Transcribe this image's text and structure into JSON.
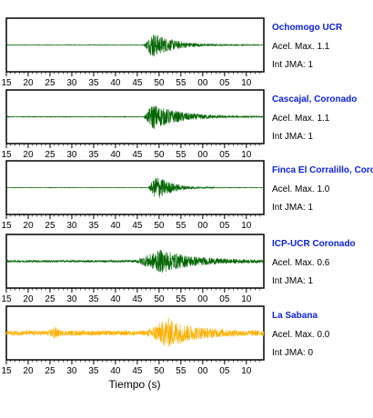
{
  "chart_data": {
    "type": "line",
    "xlabel": "Tiempo (s)",
    "tick_labels": [
      "15",
      "20",
      "25",
      "30",
      "35",
      "40",
      "45",
      "50",
      "55",
      "00",
      "05",
      "10"
    ],
    "panels": [
      {
        "station": "Ochomogo UCR",
        "accel": "Acel. Max. 1.1",
        "int": "Int JMA: 1",
        "color": "#006400",
        "amp": 14,
        "noise": 0.25,
        "onset": 46.5,
        "peak": 48.5,
        "decay": 5.0,
        "burst": null
      },
      {
        "station": "Cascajal, Coronado",
        "accel": "Acel. Max. 1.1",
        "int": "Int JMA: 1",
        "color": "#006400",
        "amp": 14,
        "noise": 0.35,
        "onset": 46.5,
        "peak": 48.5,
        "decay": 6.5,
        "burst": null
      },
      {
        "station": "Finca El Corralillo, Coronado",
        "accel": "Acel. Max. 1.0",
        "int": "Int JMA: 1",
        "color": "#006400",
        "amp": 14,
        "noise": 0.2,
        "onset": 47.5,
        "peak": 49.5,
        "decay": 3.5,
        "burst": null
      },
      {
        "station": "ICP-UCR Coronado",
        "accel": "Acel. Max. 0.6",
        "int": "Int JMA: 1",
        "color": "#006400",
        "amp": 12,
        "noise": 1.2,
        "onset": 44.5,
        "peak": 50.5,
        "decay": 7.5,
        "burst": null
      },
      {
        "station": "La Sabana",
        "accel": "Acel. Max. 0.0",
        "int": "Int JMA: 0",
        "color": "#ffb000",
        "amp": 14,
        "noise": 2.8,
        "onset": 47.0,
        "peak": 52.0,
        "decay": 6.0,
        "burst": 26
      }
    ]
  }
}
